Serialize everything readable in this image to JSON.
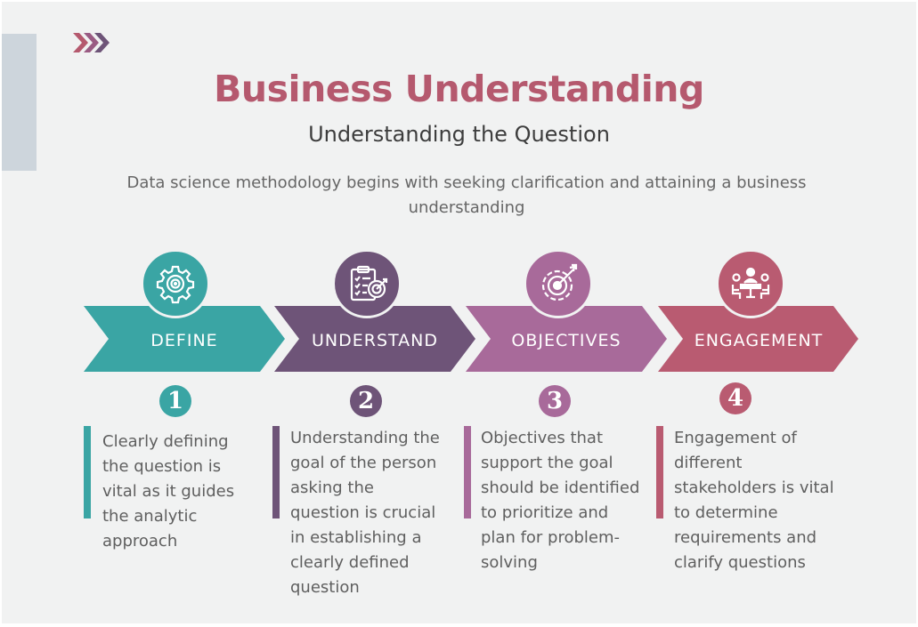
{
  "title": "Business Understanding",
  "subtitle": "Understanding the Question",
  "description": "Data science methodology begins with seeking clarification and attaining a business understanding",
  "colors": {
    "background": "#f1f2f2",
    "title": "#b5596e",
    "define": "#3aa5a4",
    "understand": "#6e5478",
    "objectives": "#a86a9a",
    "engagement": "#b95b71"
  },
  "steps": [
    {
      "label": "DEFINE",
      "number": "1",
      "icon": "gear-target-icon",
      "text": "Clearly defining\nthe question is\nvital as it guides\nthe analytic\napproach"
    },
    {
      "label": "UNDERSTAND",
      "number": "2",
      "icon": "clipboard-target-icon",
      "text": "Understanding the\ngoal of the person\nasking the\nquestion is crucial\nin establishing a\nclearly defined\nquestion"
    },
    {
      "label": "OBJECTIVES",
      "number": "3",
      "icon": "target-arrow-icon",
      "text": "Objectives that\nsupport the goal\nshould be identified\nto prioritize and\nplan for problem-\nsolving"
    },
    {
      "label": "ENGAGEMENT",
      "number": "4",
      "icon": "meeting-icon",
      "text": "Engagement of\ndifferent\nstakeholders is vital\nto determine\nrequirements and\nclarify questions"
    }
  ]
}
